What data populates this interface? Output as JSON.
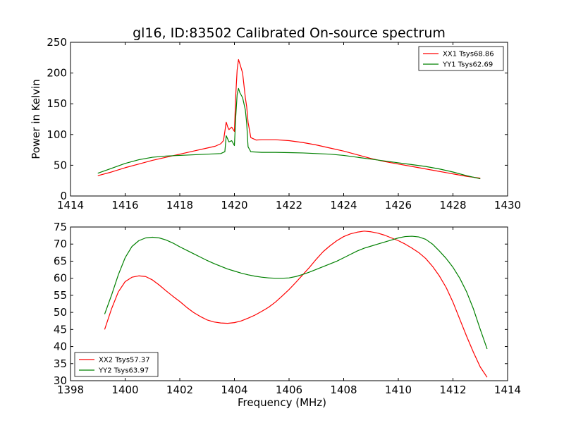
{
  "figure": {
    "title": "gl16, ID:83502 Calibrated On-source spectrum"
  },
  "chart_data": [
    {
      "type": "line",
      "title": "gl16, ID:83502 Calibrated On-source spectrum",
      "xlabel": "",
      "ylabel": "Power in Kelvin",
      "xlim": [
        1414,
        1430
      ],
      "ylim": [
        0,
        250
      ],
      "xticks": [
        "1414",
        "1416",
        "1418",
        "1420",
        "1422",
        "1424",
        "1426",
        "1428",
        "1430"
      ],
      "yticks": [
        "0",
        "50",
        "100",
        "150",
        "200",
        "250"
      ],
      "grid": false,
      "legend": "top-right",
      "series": [
        {
          "name": "XX1 Tsys68.86",
          "color": "#ff0000",
          "x": [
            1415,
            1415.5,
            1416,
            1416.5,
            1417,
            1417.5,
            1418,
            1418.5,
            1419,
            1419.3,
            1419.5,
            1419.6,
            1419.7,
            1419.75,
            1419.8,
            1419.9,
            1420.0,
            1420.05,
            1420.1,
            1420.15,
            1420.2,
            1420.3,
            1420.4,
            1420.45,
            1420.5,
            1420.6,
            1420.8,
            1421,
            1421.5,
            1422,
            1422.5,
            1423,
            1423.5,
            1424,
            1424.5,
            1425,
            1425.5,
            1426,
            1426.5,
            1427,
            1427.5,
            1428,
            1428.5,
            1429
          ],
          "values": [
            33,
            39,
            46,
            52,
            58,
            63,
            68,
            73,
            78,
            81,
            85,
            90,
            120,
            113,
            108,
            112,
            105,
            165,
            205,
            222,
            215,
            200,
            160,
            145,
            120,
            95,
            91,
            91.5,
            91.5,
            90,
            87,
            83,
            78,
            73,
            67,
            61,
            56,
            52,
            48,
            44,
            40,
            36,
            32,
            29
          ]
        },
        {
          "name": "YY1 Tsys62.69",
          "color": "#008000",
          "x": [
            1415,
            1415.5,
            1416,
            1416.5,
            1417,
            1417.5,
            1418,
            1418.5,
            1419,
            1419.5,
            1419.65,
            1419.7,
            1419.8,
            1419.9,
            1420.0,
            1420.05,
            1420.1,
            1420.15,
            1420.2,
            1420.3,
            1420.4,
            1420.45,
            1420.5,
            1420.6,
            1421,
            1421.5,
            1422,
            1422.5,
            1423,
            1423.5,
            1424,
            1424.5,
            1425,
            1425.5,
            1426,
            1426.5,
            1427,
            1427.5,
            1428,
            1428.5,
            1429
          ],
          "values": [
            37,
            45,
            53,
            59,
            63,
            65,
            66,
            67,
            68,
            69,
            72,
            98,
            88,
            90,
            82,
            130,
            165,
            175,
            168,
            160,
            140,
            118,
            80,
            72,
            71,
            71,
            70.5,
            70,
            69,
            68,
            66,
            63,
            60,
            57,
            54,
            51,
            48,
            44,
            39,
            33,
            28
          ]
        }
      ]
    },
    {
      "type": "line",
      "title": "",
      "xlabel": "Frequency (MHz)",
      "ylabel": "",
      "xlim": [
        1398,
        1414
      ],
      "ylim": [
        30,
        75
      ],
      "xticks": [
        "1398",
        "1400",
        "1402",
        "1404",
        "1406",
        "1408",
        "1410",
        "1412",
        "1414"
      ],
      "yticks": [
        "30",
        "35",
        "40",
        "45",
        "50",
        "55",
        "60",
        "65",
        "70",
        "75"
      ],
      "grid": false,
      "legend": "bottom-left",
      "series": [
        {
          "name": "XX2 Tsys57.37",
          "color": "#ff0000",
          "x": [
            1399.25,
            1399.5,
            1399.75,
            1400,
            1400.25,
            1400.5,
            1400.75,
            1401,
            1401.25,
            1401.5,
            1401.75,
            1402,
            1402.25,
            1402.5,
            1402.75,
            1403,
            1403.25,
            1403.5,
            1403.75,
            1404,
            1404.25,
            1404.5,
            1404.75,
            1405,
            1405.25,
            1405.5,
            1405.75,
            1406,
            1406.25,
            1406.5,
            1406.75,
            1407,
            1407.25,
            1407.5,
            1407.75,
            1408,
            1408.25,
            1408.5,
            1408.75,
            1409,
            1409.25,
            1409.5,
            1409.75,
            1410,
            1410.25,
            1410.5,
            1410.75,
            1411,
            1411.25,
            1411.5,
            1411.75,
            1412,
            1412.25,
            1412.5,
            1412.75,
            1413,
            1413.25
          ],
          "values": [
            45,
            51,
            56,
            59,
            60.3,
            60.7,
            60.5,
            59.5,
            58,
            56.3,
            54.7,
            53.2,
            51.5,
            50,
            48.8,
            47.8,
            47.2,
            46.9,
            46.8,
            47,
            47.5,
            48.3,
            49.2,
            50.3,
            51.5,
            53,
            54.8,
            56.7,
            58.8,
            61,
            63.2,
            65.6,
            67.8,
            69.5,
            71,
            72.2,
            73,
            73.5,
            73.8,
            73.6,
            73.2,
            72.6,
            71.8,
            71,
            70,
            68.8,
            67.5,
            65.8,
            63.5,
            60.7,
            57.3,
            53,
            48,
            43,
            38.3,
            34,
            31
          ]
        },
        {
          "name": "YY2 Tsys63.97",
          "color": "#008000",
          "x": [
            1399.25,
            1399.5,
            1399.75,
            1400,
            1400.25,
            1400.5,
            1400.75,
            1401,
            1401.25,
            1401.5,
            1401.75,
            1402,
            1402.25,
            1402.5,
            1402.75,
            1403,
            1403.25,
            1403.5,
            1403.75,
            1404,
            1404.25,
            1404.5,
            1404.75,
            1405,
            1405.25,
            1405.5,
            1405.75,
            1406,
            1406.25,
            1406.5,
            1406.75,
            1407,
            1407.25,
            1407.5,
            1407.75,
            1408,
            1408.25,
            1408.5,
            1408.75,
            1409,
            1409.25,
            1409.5,
            1409.75,
            1410,
            1410.25,
            1410.5,
            1410.75,
            1411,
            1411.25,
            1411.5,
            1411.75,
            1412,
            1412.25,
            1412.5,
            1412.75,
            1413,
            1413.25
          ],
          "values": [
            49.5,
            55,
            61,
            66,
            69.3,
            71,
            71.8,
            72,
            71.8,
            71.2,
            70.3,
            69.2,
            68.2,
            67.2,
            66.2,
            65.2,
            64.3,
            63.5,
            62.7,
            62.1,
            61.5,
            61,
            60.6,
            60.3,
            60.1,
            60,
            60,
            60.1,
            60.5,
            61.1,
            61.8,
            62.6,
            63.4,
            64.2,
            65,
            66,
            67,
            68,
            68.8,
            69.4,
            70,
            70.6,
            71.2,
            71.8,
            72.2,
            72.3,
            72.1,
            71.4,
            70,
            68,
            65.8,
            63.2,
            60,
            56,
            51,
            45,
            39.3
          ]
        }
      ]
    }
  ]
}
